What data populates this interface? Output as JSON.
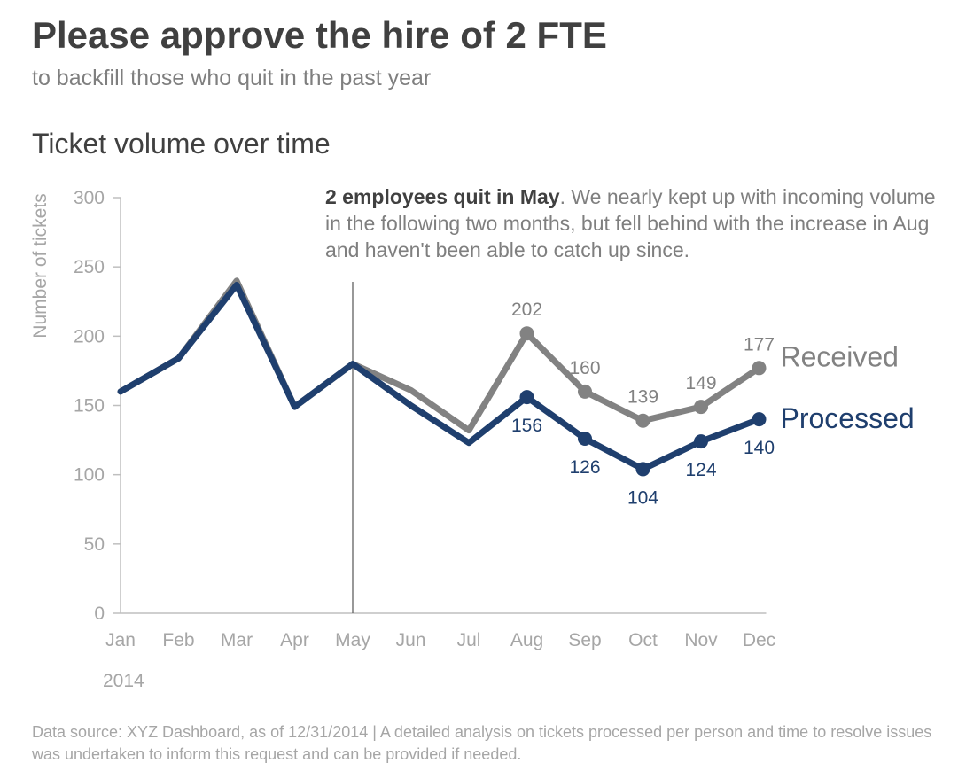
{
  "header": {
    "title": "Please approve the hire of 2 FTE",
    "subtitle": "to backfill those who quit in the past year"
  },
  "annotation": {
    "bold": "2 employees quit in May",
    "text": ". We nearly kept up with incoming volume in the following two months, but fell behind with the increase in Aug and haven't been able to catch up since."
  },
  "footnote": "Data source: XYZ Dashboard, as of 12/31/2014  |  A detailed analysis on tickets processed per person and time to resolve issues was undertaken to inform this request and can be provided if needed.",
  "colors": {
    "received": "#828282",
    "processed": "#1f3f6e",
    "axis": "#bfbfbf",
    "tick_label": "#a6a6a6",
    "marker_line": "#555555"
  },
  "chart_data": {
    "type": "line",
    "title": "Ticket volume over time",
    "ylabel": "Number of tickets",
    "xlabel": "",
    "year_label": "2014",
    "categories": [
      "Jan",
      "Feb",
      "Mar",
      "Apr",
      "May",
      "Jun",
      "Jul",
      "Aug",
      "Sep",
      "Oct",
      "Nov",
      "Dec"
    ],
    "ylim": [
      0,
      300
    ],
    "yticks": [
      0,
      50,
      100,
      150,
      200,
      250,
      300
    ],
    "grid": false,
    "reference_line": {
      "category": "May"
    },
    "series": [
      {
        "name": "Received",
        "color": "#828282",
        "values": [
          160,
          184,
          240,
          149,
          180,
          161,
          132,
          202,
          160,
          139,
          149,
          177
        ],
        "labeled_from": "Aug"
      },
      {
        "name": "Processed",
        "color": "#1f3f6e",
        "values": [
          160,
          184,
          237,
          149,
          180,
          150,
          123,
          156,
          126,
          104,
          124,
          140
        ],
        "labeled_from": "Aug"
      }
    ]
  }
}
